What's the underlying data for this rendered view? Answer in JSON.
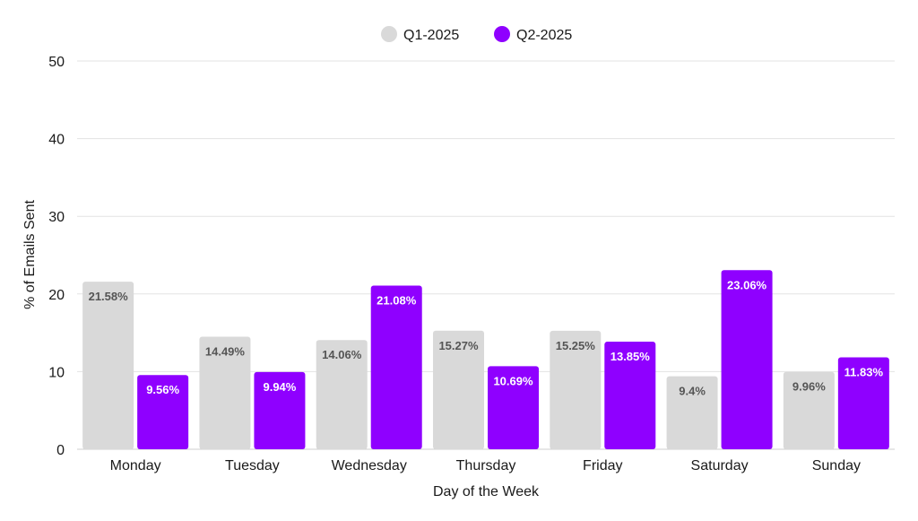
{
  "chart_data": {
    "type": "bar",
    "title": "",
    "xlabel": "Day of the Week",
    "ylabel": "% of Emails Sent",
    "ylim": [
      0,
      50
    ],
    "yticks": [
      0,
      10,
      20,
      30,
      40,
      50
    ],
    "grid": true,
    "legend_position": "top-center",
    "categories": [
      "Monday",
      "Tuesday",
      "Wednesday",
      "Thursday",
      "Friday",
      "Saturday",
      "Sunday"
    ],
    "series": [
      {
        "name": "Q1-2025",
        "color": "#d9d9d9",
        "label_color": "#555555",
        "values": [
          21.58,
          14.49,
          14.06,
          15.27,
          15.25,
          9.4,
          9.96
        ],
        "value_labels": [
          "21.58%",
          "14.49%",
          "14.06%",
          "15.27%",
          "15.25%",
          "9.4%",
          "9.96%"
        ]
      },
      {
        "name": "Q2-2025",
        "color": "#8f00ff",
        "label_color": "#ffffff",
        "values": [
          9.56,
          9.94,
          21.08,
          10.69,
          13.85,
          23.06,
          11.83
        ],
        "value_labels": [
          "9.56%",
          "9.94%",
          "21.08%",
          "10.69%",
          "13.85%",
          "23.06%",
          "11.83%"
        ]
      }
    ]
  }
}
